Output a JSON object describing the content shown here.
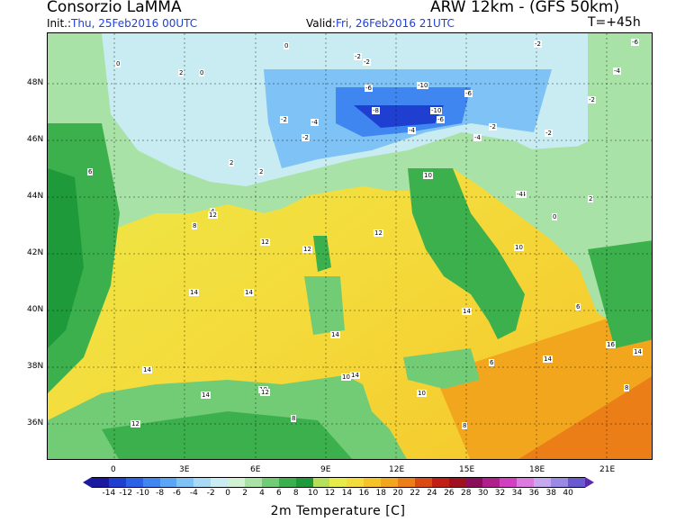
{
  "header": {
    "title_left": "Consorzio LaMMA",
    "title_right": "ARW 12km - (GFS 50km)",
    "init_label": "Init.:",
    "init_value": "Thu, 25Feb2016 00UTC",
    "valid_label": "Valid:",
    "valid_value": "Fri, 26Feb2016 21UTC",
    "step": "T=+45h"
  },
  "axes": {
    "lat_labels": [
      "48N",
      "46N",
      "44N",
      "42N",
      "40N",
      "38N",
      "36N"
    ],
    "lon_labels": [
      "0",
      "3E",
      "6E",
      "9E",
      "12E",
      "15E",
      "18E",
      "21E"
    ]
  },
  "colorbar": {
    "ticks": [
      "-14",
      "-12",
      "-10",
      "-8",
      "-6",
      "-4",
      "-2",
      "0",
      "2",
      "4",
      "6",
      "8",
      "10",
      "12",
      "14",
      "16",
      "18",
      "20",
      "22",
      "24",
      "26",
      "28",
      "30",
      "32",
      "34",
      "36",
      "38",
      "40"
    ],
    "colors": [
      "#1a1aa0",
      "#1f3fd0",
      "#2b62e6",
      "#3f86f0",
      "#5aa6f4",
      "#7ec2f6",
      "#a8daf6",
      "#c8ecf2",
      "#d2f0d2",
      "#a8e2a6",
      "#72cc76",
      "#3cb04c",
      "#1e9a3a",
      "#b6e05a",
      "#e8ec4a",
      "#f4dc3c",
      "#f6c428",
      "#f2a61e",
      "#ec7e18",
      "#dc4a14",
      "#c01e16",
      "#a0101e",
      "#8a0e5a",
      "#b0208c",
      "#d040c0",
      "#dc7ae0",
      "#c6a8ee",
      "#9a8ae6",
      "#6a5ad0"
    ],
    "caption": "2m Temperature [C]"
  },
  "map_labels": [
    {
      "text": "0"
    },
    {
      "text": "-2"
    },
    {
      "text": "-2"
    },
    {
      "text": "-2"
    },
    {
      "text": "-6"
    },
    {
      "text": "-4"
    },
    {
      "text": "-6"
    },
    {
      "text": "-10"
    },
    {
      "text": "-8"
    },
    {
      "text": "-6"
    },
    {
      "text": "-10"
    },
    {
      "text": "-4"
    },
    {
      "text": "-2"
    },
    {
      "text": "-2"
    },
    {
      "text": "-4"
    },
    {
      "text": "-2"
    },
    {
      "text": "-2"
    },
    {
      "text": "-4"
    },
    {
      "text": "-4"
    },
    {
      "text": "-6"
    },
    {
      "text": "0"
    },
    {
      "text": "0"
    },
    {
      "text": "2"
    },
    {
      "text": "2"
    },
    {
      "text": "2"
    },
    {
      "text": "4"
    },
    {
      "text": "6"
    },
    {
      "text": "8"
    },
    {
      "text": "10"
    },
    {
      "text": "10"
    },
    {
      "text": "12"
    },
    {
      "text": "12"
    },
    {
      "text": "12"
    },
    {
      "text": "12"
    },
    {
      "text": "14"
    },
    {
      "text": "14"
    },
    {
      "text": "14"
    },
    {
      "text": "14"
    },
    {
      "text": "14"
    },
    {
      "text": "14"
    },
    {
      "text": "14"
    },
    {
      "text": "12"
    },
    {
      "text": "10"
    },
    {
      "text": "8"
    },
    {
      "text": "10"
    },
    {
      "text": "8"
    },
    {
      "text": "6"
    },
    {
      "text": "6"
    },
    {
      "text": "10"
    },
    {
      "text": "12"
    },
    {
      "text": "14"
    },
    {
      "text": "16"
    },
    {
      "text": "14"
    },
    {
      "text": "8"
    },
    {
      "text": "-4"
    },
    {
      "text": "-2"
    },
    {
      "text": "0"
    },
    {
      "text": "2"
    }
  ]
}
